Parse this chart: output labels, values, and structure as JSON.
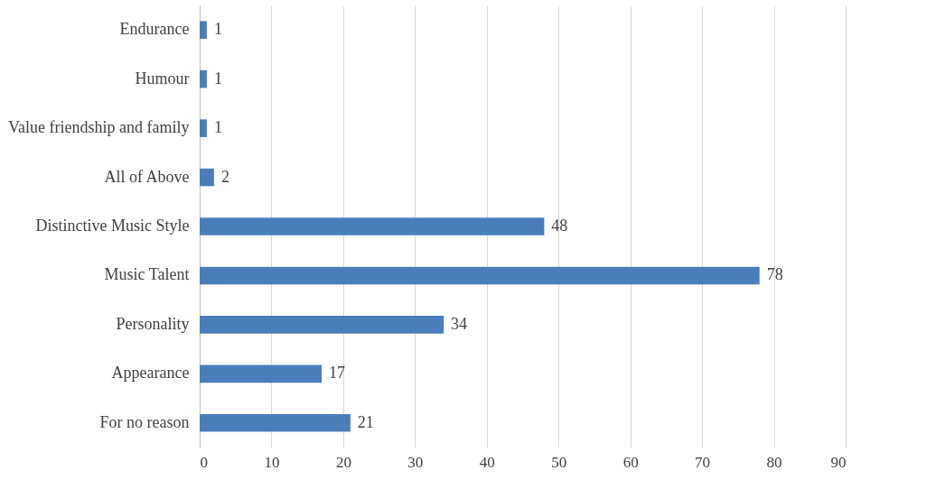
{
  "chart_data": {
    "type": "bar",
    "orientation": "horizontal",
    "categories": [
      "Endurance",
      "Humour",
      "Value friendship and family",
      "All of Above",
      "Distinctive Music Style",
      "Music Talent",
      "Personality",
      "Appearance",
      "For no reason"
    ],
    "values": [
      1,
      1,
      1,
      2,
      48,
      78,
      34,
      17,
      21
    ],
    "color": "#4a7ebb",
    "xlim": [
      0,
      90
    ],
    "xticks": [
      0,
      10,
      20,
      30,
      40,
      50,
      60,
      70,
      80,
      90
    ],
    "grid": "x",
    "data_labels": true
  }
}
